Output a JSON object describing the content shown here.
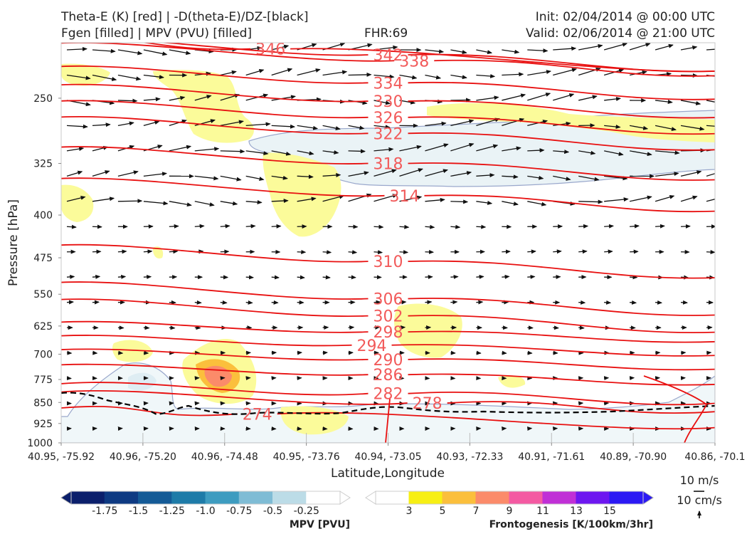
{
  "header": {
    "line1_left": "Theta-E (K) [red] | -D(theta-E)/DZ-[black]",
    "line2_left": "Fgen [filled] | MPV (PVU) [filled]",
    "fhr": "FHR:69",
    "init": "Init: 02/04/2014 @ 00:00 UTC",
    "valid": "Valid: 02/06/2014 @ 21:00 UTC"
  },
  "chart_data": {
    "type": "contour",
    "xlabel": "Latitude,Longitude",
    "ylabel": "Pressure [hPa]",
    "x_ticks": [
      "40.95, -75.92",
      "40.96, -75.20",
      "40.96, -74.48",
      "40.95, -73.76",
      "40.94, -73.05",
      "40.93, -72.33",
      "40.91, -71.61",
      "40.89, -70.90",
      "40.86, -70.1"
    ],
    "y_ticks": [
      250,
      325,
      400,
      475,
      550,
      625,
      700,
      775,
      850,
      925,
      1000
    ],
    "ylim": [
      1000,
      200
    ],
    "y_scale": "log",
    "theta_e_labels": [
      {
        "value": "342",
        "x_frac": 0.5,
        "p": 210
      },
      {
        "value": "338",
        "x_frac": 0.54,
        "p": 215
      },
      {
        "value": "346",
        "x_frac": 0.32,
        "p": 205
      },
      {
        "value": "334",
        "x_frac": 0.5,
        "p": 235
      },
      {
        "value": "330",
        "x_frac": 0.5,
        "p": 253
      },
      {
        "value": "326",
        "x_frac": 0.5,
        "p": 270
      },
      {
        "value": "322",
        "x_frac": 0.5,
        "p": 288
      },
      {
        "value": "318",
        "x_frac": 0.5,
        "p": 325
      },
      {
        "value": "314",
        "x_frac": 0.525,
        "p": 370
      },
      {
        "value": "310",
        "x_frac": 0.5,
        "p": 482
      },
      {
        "value": "306",
        "x_frac": 0.5,
        "p": 560
      },
      {
        "value": "302",
        "x_frac": 0.5,
        "p": 600
      },
      {
        "value": "298",
        "x_frac": 0.5,
        "p": 640
      },
      {
        "value": "294",
        "x_frac": 0.475,
        "p": 675
      },
      {
        "value": "290",
        "x_frac": 0.5,
        "p": 715
      },
      {
        "value": "286",
        "x_frac": 0.5,
        "p": 760
      },
      {
        "value": "282",
        "x_frac": 0.5,
        "p": 820
      },
      {
        "value": "278",
        "x_frac": 0.56,
        "p": 852
      },
      {
        "value": "274",
        "x_frac": 0.3,
        "p": 890
      }
    ],
    "mpv_colorbar": {
      "label": "MPV [PVU]",
      "ticks": [
        "-1.75",
        "-1.5",
        "-1.25",
        "-1.0",
        "-0.75",
        "-0.5",
        "-0.25"
      ],
      "colors": [
        "#0b1f6b",
        "#0e3a82",
        "#145a96",
        "#1e7ba8",
        "#3e9cc0",
        "#7fbcd5",
        "#bcdce7",
        "#ffffff"
      ]
    },
    "fgen_colorbar": {
      "label": "Frontogenesis [K/100km/3hr]",
      "ticks": [
        "3",
        "5",
        "7",
        "9",
        "11",
        "13",
        "15"
      ],
      "colors": [
        "#ffffff",
        "#f7ef14",
        "#fbbf3c",
        "#fb8b6a",
        "#f45aa2",
        "#c02fd6",
        "#6d17f0",
        "#2b19f4"
      ]
    },
    "wind_key": {
      "label1": "10 m/s",
      "label2": "10 cm/s"
    },
    "colors": {
      "theta_e": "#e81010",
      "theta_e_label": "#f25a5a",
      "boundary": "#000000",
      "mpv_edge": "#9aa8cc",
      "fgen_fill": "#fbfb9a"
    }
  }
}
